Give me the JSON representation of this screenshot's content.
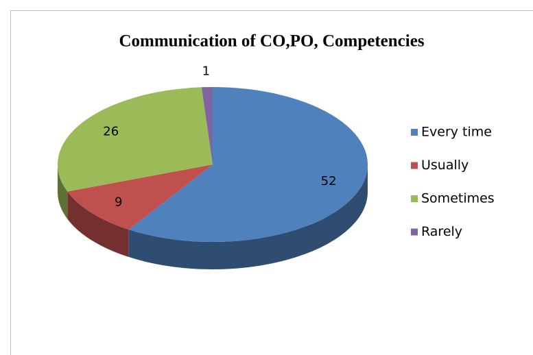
{
  "chart_data": {
    "type": "pie",
    "title": "Communication of CO,PO,  Competencies",
    "categories": [
      "Every time",
      "Usually",
      "Sometimes",
      "Rarely"
    ],
    "values": [
      52,
      9,
      26,
      1
    ],
    "colors": [
      "#4f81bd",
      "#c0504d",
      "#9bbb59",
      "#8064a2"
    ],
    "legend": "right"
  }
}
